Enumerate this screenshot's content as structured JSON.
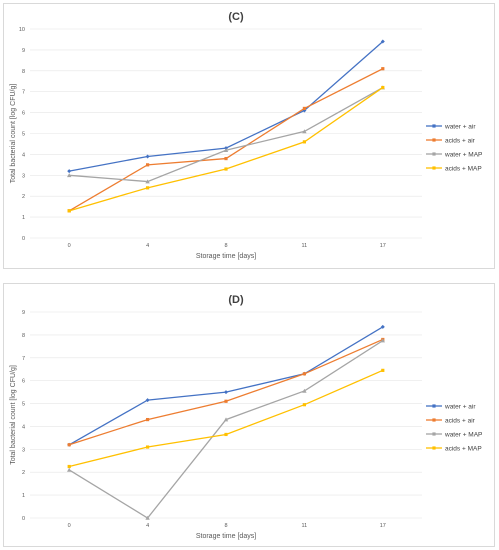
{
  "chart_data": [
    {
      "type": "line",
      "title": "(C)",
      "xlabel": "Storage time [days]",
      "ylabel": "Total bacterial count [log CFU/g]",
      "categories": [
        "0",
        "4",
        "8",
        "11",
        "17"
      ],
      "ylim": [
        0,
        10
      ],
      "yticks": [
        "0",
        "1",
        "2",
        "3",
        "4",
        "5",
        "6",
        "7",
        "8",
        "9",
        "10"
      ],
      "grid": true,
      "legend": "right",
      "series": [
        {
          "name": "water + air",
          "color": "#4472C4",
          "values": [
            3.2,
            3.9,
            4.3,
            6.1,
            9.4
          ]
        },
        {
          "name": "acids + air",
          "color": "#ED7D31",
          "values": [
            1.3,
            3.5,
            3.8,
            6.2,
            8.1
          ]
        },
        {
          "name": "water + MAP",
          "color": "#A5A5A5",
          "values": [
            3.0,
            2.7,
            4.2,
            5.1,
            7.2
          ]
        },
        {
          "name": "acids + MAP",
          "color": "#FFC000",
          "values": [
            1.3,
            2.4,
            3.3,
            4.6,
            7.2
          ]
        }
      ]
    },
    {
      "type": "line",
      "title": "(D)",
      "xlabel": "Storage time [days]",
      "ylabel": "Total bacterial count [log CFU/g]",
      "categories": [
        "0",
        "4",
        "8",
        "11",
        "17"
      ],
      "ylim": [
        0,
        9
      ],
      "yticks": [
        "0",
        "1",
        "2",
        "3",
        "4",
        "5",
        "6",
        "7",
        "8",
        "9"
      ],
      "grid": true,
      "legend": "right",
      "series": [
        {
          "name": "water + air",
          "color": "#4472C4",
          "values": [
            3.2,
            5.15,
            5.5,
            6.3,
            8.35
          ]
        },
        {
          "name": "acids + air",
          "color": "#ED7D31",
          "values": [
            3.2,
            4.3,
            5.1,
            6.3,
            7.8
          ]
        },
        {
          "name": "water + MAP",
          "color": "#A5A5A5",
          "values": [
            2.1,
            0.0,
            4.3,
            5.55,
            7.75
          ]
        },
        {
          "name": "acids + MAP",
          "color": "#FFC000",
          "values": [
            2.25,
            3.1,
            3.65,
            4.95,
            6.45
          ]
        }
      ]
    }
  ]
}
